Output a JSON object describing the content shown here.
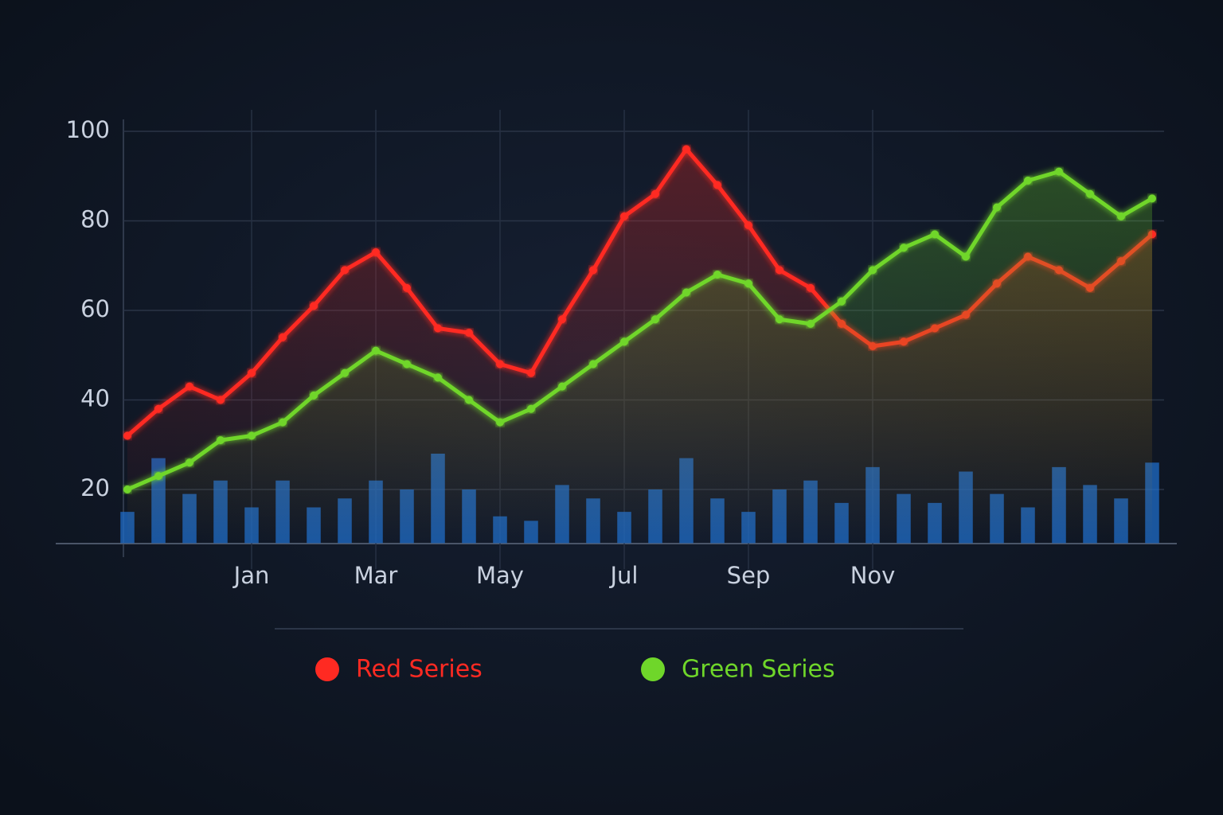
{
  "chart_data": {
    "type": "line",
    "categories": [
      null,
      null,
      null,
      null,
      "Jan",
      null,
      null,
      null,
      "Mar",
      null,
      null,
      null,
      "May",
      null,
      null,
      null,
      "Jul",
      null,
      null,
      null,
      "Sep",
      null,
      null,
      null,
      "Nov",
      null,
      null,
      null,
      null,
      null,
      null,
      null,
      null,
      null
    ],
    "series": [
      {
        "name": "Red Series",
        "color": "#ff2a22",
        "values": [
          32,
          38,
          43,
          40,
          46,
          54,
          61,
          69,
          73,
          65,
          56,
          55,
          48,
          46,
          58,
          69,
          81,
          86,
          96,
          88,
          79,
          69,
          65,
          57,
          52,
          53,
          56,
          59,
          66,
          72,
          69,
          65,
          71,
          77
        ]
      },
      {
        "name": "Green Series",
        "color": "#6fd62a",
        "values": [
          20,
          23,
          26,
          31,
          32,
          35,
          41,
          46,
          51,
          48,
          45,
          40,
          35,
          38,
          43,
          48,
          53,
          58,
          64,
          68,
          66,
          58,
          57,
          62,
          69,
          74,
          77,
          72,
          83,
          89,
          91,
          86,
          81,
          85
        ]
      },
      {
        "type": "bar",
        "color": "#1f6cc8",
        "values": [
          15,
          27,
          19,
          22,
          16,
          22,
          16,
          18,
          22,
          20,
          28,
          20,
          14,
          13,
          21,
          18,
          15,
          20,
          27,
          18,
          15,
          20,
          22,
          17,
          25,
          19,
          17,
          24,
          19,
          16,
          25,
          21,
          18,
          26
        ]
      }
    ],
    "ylim": [
      8,
      100
    ],
    "yticks": [
      20,
      40,
      60,
      80,
      100
    ],
    "grid": true
  }
}
